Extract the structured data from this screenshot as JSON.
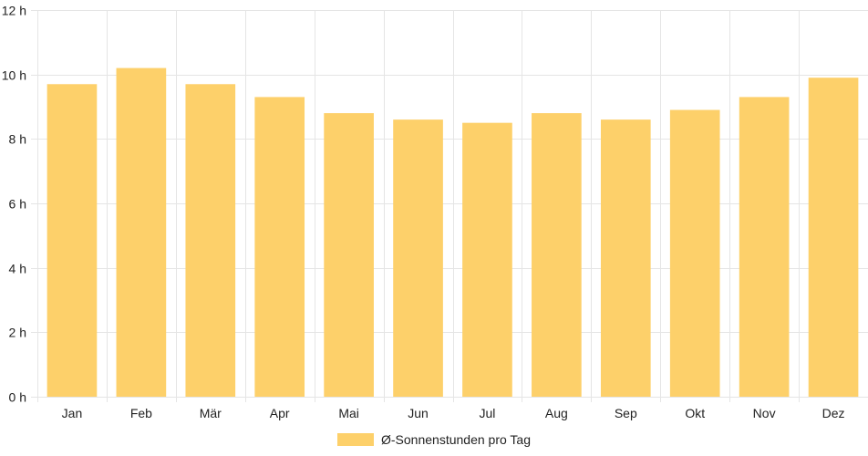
{
  "chart_data": {
    "type": "bar",
    "categories": [
      "Jan",
      "Feb",
      "Mär",
      "Apr",
      "Mai",
      "Jun",
      "Jul",
      "Aug",
      "Sep",
      "Okt",
      "Nov",
      "Dez"
    ],
    "series": [
      {
        "name": "Ø-Sonnenstunden pro Tag",
        "values": [
          9.7,
          10.2,
          9.7,
          9.3,
          8.8,
          8.6,
          8.5,
          8.8,
          8.6,
          8.9,
          9.3,
          9.9
        ]
      }
    ],
    "ylim": [
      0,
      12
    ],
    "yticks": [
      0,
      2,
      4,
      6,
      8,
      10,
      12
    ],
    "ytick_suffix": " h",
    "grid": true,
    "legend_position": "bottom",
    "bar_color": "#fdd06a",
    "grid_color": "#e5e5e5"
  }
}
